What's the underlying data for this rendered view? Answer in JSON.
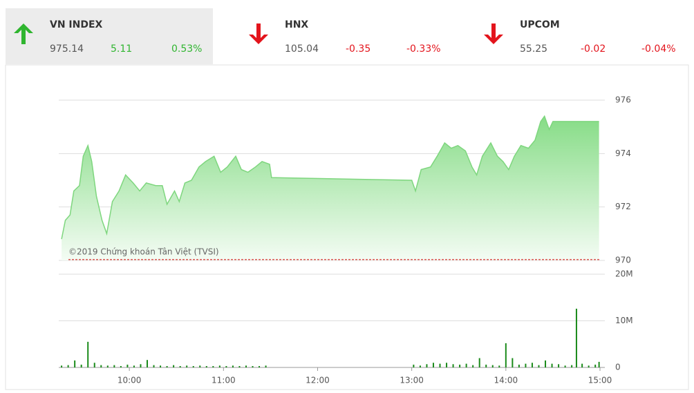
{
  "header": {
    "indices": [
      {
        "name": "VN INDEX",
        "value": "975.14",
        "change": "5.11",
        "percent": "0.53%",
        "direction": "up",
        "selected": true
      },
      {
        "name": "HNX",
        "value": "105.04",
        "change": "-0.35",
        "percent": "-0.33%",
        "direction": "down",
        "selected": false
      },
      {
        "name": "UPCOM",
        "value": "55.25",
        "change": "-0.02",
        "percent": "-0.04%",
        "direction": "down",
        "selected": false
      }
    ]
  },
  "chart_data": [
    {
      "type": "area",
      "annotation": "©2019 Chứng khoán Tân Việt (TVSI)",
      "color": "#7ed67e",
      "x": [
        9.28,
        9.32,
        9.37,
        9.41,
        9.47,
        9.51,
        9.56,
        9.6,
        9.65,
        9.71,
        9.76,
        9.82,
        9.89,
        9.96,
        10.04,
        10.11,
        10.18,
        10.28,
        10.35,
        10.4,
        10.48,
        10.53,
        10.59,
        10.66,
        10.74,
        10.81,
        10.9,
        10.97,
        11.04,
        11.13,
        11.19,
        11.26,
        11.34,
        11.41,
        11.49,
        11.51,
        13.0,
        13.04,
        13.1,
        13.2,
        13.27,
        13.35,
        13.42,
        13.49,
        13.57,
        13.64,
        13.69,
        13.75,
        13.84,
        13.91,
        13.97,
        14.03,
        14.09,
        14.16,
        14.24,
        14.31,
        14.37,
        14.41,
        14.46,
        14.5,
        14.75,
        14.99
      ],
      "values": [
        970.8,
        971.5,
        971.7,
        972.6,
        972.8,
        973.9,
        974.3,
        973.7,
        972.4,
        971.5,
        971.0,
        972.2,
        972.6,
        973.2,
        972.9,
        972.6,
        972.9,
        972.8,
        972.8,
        972.1,
        972.6,
        972.2,
        972.9,
        973.0,
        973.5,
        973.7,
        973.9,
        973.3,
        973.5,
        973.9,
        973.4,
        973.3,
        973.5,
        973.7,
        973.6,
        973.1,
        973.0,
        972.6,
        973.4,
        973.5,
        973.9,
        974.4,
        974.2,
        974.3,
        974.1,
        973.5,
        973.2,
        973.9,
        974.4,
        973.9,
        973.7,
        973.4,
        973.9,
        974.3,
        974.2,
        974.5,
        975.2,
        975.4,
        974.9,
        975.2,
        975.2,
        975.2
      ],
      "reference_line": 970.03,
      "reference_color": "#cc0000",
      "xlim": [
        9.25,
        15
      ],
      "ylim": [
        970,
        976
      ],
      "yticks": [
        970,
        972,
        974,
        976
      ],
      "grid": true
    },
    {
      "type": "bar",
      "color": "#1a8a1a",
      "x": [
        9.28,
        9.35,
        9.42,
        9.49,
        9.56,
        9.63,
        9.7,
        9.77,
        9.84,
        9.91,
        9.98,
        10.05,
        10.12,
        10.19,
        10.26,
        10.33,
        10.4,
        10.47,
        10.54,
        10.61,
        10.68,
        10.75,
        10.82,
        10.89,
        10.96,
        11.03,
        11.1,
        11.17,
        11.24,
        11.31,
        11.38,
        11.45,
        13.02,
        13.09,
        13.16,
        13.23,
        13.3,
        13.37,
        13.44,
        13.51,
        13.58,
        13.65,
        13.72,
        13.79,
        13.86,
        13.93,
        14.0,
        14.07,
        14.14,
        14.21,
        14.28,
        14.35,
        14.42,
        14.49,
        14.56,
        14.63,
        14.7,
        14.75,
        14.81,
        14.88,
        14.95,
        14.99
      ],
      "values": [
        0.4,
        0.5,
        1.5,
        0.6,
        5.5,
        1.0,
        0.5,
        0.4,
        0.5,
        0.3,
        0.6,
        0.4,
        0.7,
        1.6,
        0.5,
        0.4,
        0.3,
        0.5,
        0.3,
        0.4,
        0.3,
        0.4,
        0.3,
        0.3,
        0.4,
        0.3,
        0.4,
        0.3,
        0.4,
        0.3,
        0.3,
        0.4,
        0.6,
        0.4,
        0.7,
        1.0,
        0.8,
        1.0,
        0.7,
        0.6,
        0.8,
        0.5,
        2.0,
        0.6,
        0.5,
        0.4,
        5.2,
        2.0,
        0.6,
        0.8,
        1.0,
        0.5,
        1.5,
        0.8,
        0.7,
        0.4,
        0.5,
        12.6,
        0.8,
        0.4,
        0.6,
        1.2
      ],
      "xlim": [
        9.25,
        15
      ],
      "xticks": [
        {
          "value": 10,
          "label": "10:00"
        },
        {
          "value": 11,
          "label": "11:00"
        },
        {
          "value": 12,
          "label": "12:00"
        },
        {
          "value": 13,
          "label": "13:00"
        },
        {
          "value": 14,
          "label": "14:00"
        },
        {
          "value": 15,
          "label": "15:00"
        }
      ],
      "ylim": [
        0,
        20
      ],
      "yticks": [
        0,
        {
          "value": 10,
          "label": "10M"
        },
        {
          "value": 20,
          "label": "20M"
        }
      ],
      "grid": true
    }
  ]
}
